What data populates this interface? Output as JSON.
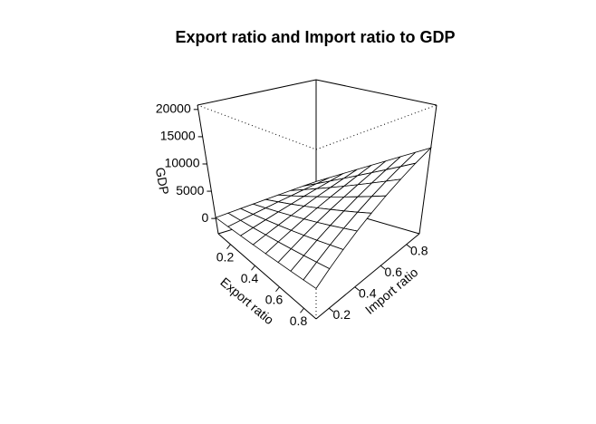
{
  "chart_data": {
    "type": "surface",
    "title": "Export ratio and Import ratio to GDP",
    "xlabel": "Export ratio",
    "ylabel": "Import ratio",
    "zlabel": "GDP",
    "xlim": [
      0.1,
      0.9
    ],
    "ylim": [
      0.1,
      0.9
    ],
    "zlim": [
      -2800,
      20800
    ],
    "xticks": [
      0.2,
      0.4,
      0.6,
      0.8
    ],
    "yticks": [
      0.2,
      0.4,
      0.6,
      0.8
    ],
    "zticks": [
      0,
      5000,
      10000,
      15000,
      20000
    ],
    "x": [
      0.1,
      0.2,
      0.3,
      0.4,
      0.5,
      0.6,
      0.7,
      0.8,
      0.9
    ],
    "y": [
      0.1,
      0.2,
      0.3,
      0.4,
      0.5,
      0.6,
      0.7,
      0.8,
      0.9
    ],
    "color": "#ffffff",
    "z": [
      [
        160,
        320,
        480,
        640,
        800,
        960,
        1120,
        1280,
        1440
      ],
      [
        320,
        640,
        960,
        1280,
        1600,
        1920,
        2240,
        2560,
        2880
      ],
      [
        480,
        960,
        1440,
        1920,
        2400,
        2880,
        3360,
        3840,
        4320
      ],
      [
        640,
        1280,
        1920,
        2560,
        3200,
        3840,
        4480,
        5120,
        5760
      ],
      [
        800,
        1600,
        2400,
        3200,
        4000,
        4800,
        5600,
        6400,
        7200
      ],
      [
        960,
        1920,
        2880,
        3840,
        4800,
        5760,
        6720,
        7680,
        8640
      ],
      [
        1120,
        2240,
        3360,
        4480,
        5600,
        6720,
        7840,
        8960,
        10080
      ],
      [
        1280,
        2560,
        3840,
        5120,
        6400,
        7680,
        8960,
        10240,
        11520
      ],
      [
        1440,
        2880,
        4320,
        5760,
        7200,
        8640,
        10080,
        11520,
        12960
      ]
    ]
  }
}
